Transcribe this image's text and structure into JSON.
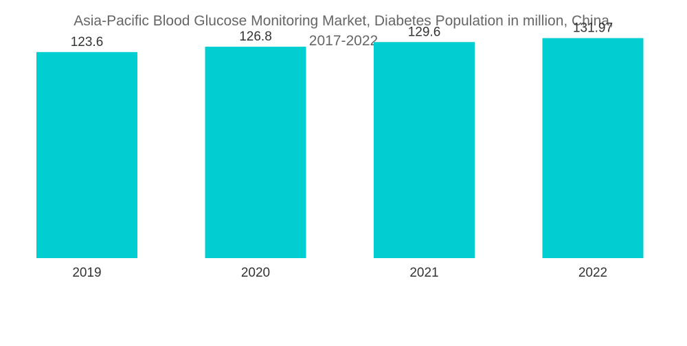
{
  "chart_data": {
    "type": "bar",
    "title_line1": "Asia-Pacific Blood Glucose Monitoring Market, Diabetes Population in million, China,",
    "title_line2": "2017-2022",
    "categories": [
      "2019",
      "2020",
      "2021",
      "2022"
    ],
    "values": [
      123.6,
      126.8,
      129.6,
      131.97
    ],
    "value_labels": [
      "123.6",
      "126.8",
      "129.6",
      "131.97"
    ],
    "xlabel": "",
    "ylabel": "",
    "ylim": [
      0,
      140
    ],
    "bar_color": "#00CED1",
    "grid": false,
    "legend": "none"
  }
}
